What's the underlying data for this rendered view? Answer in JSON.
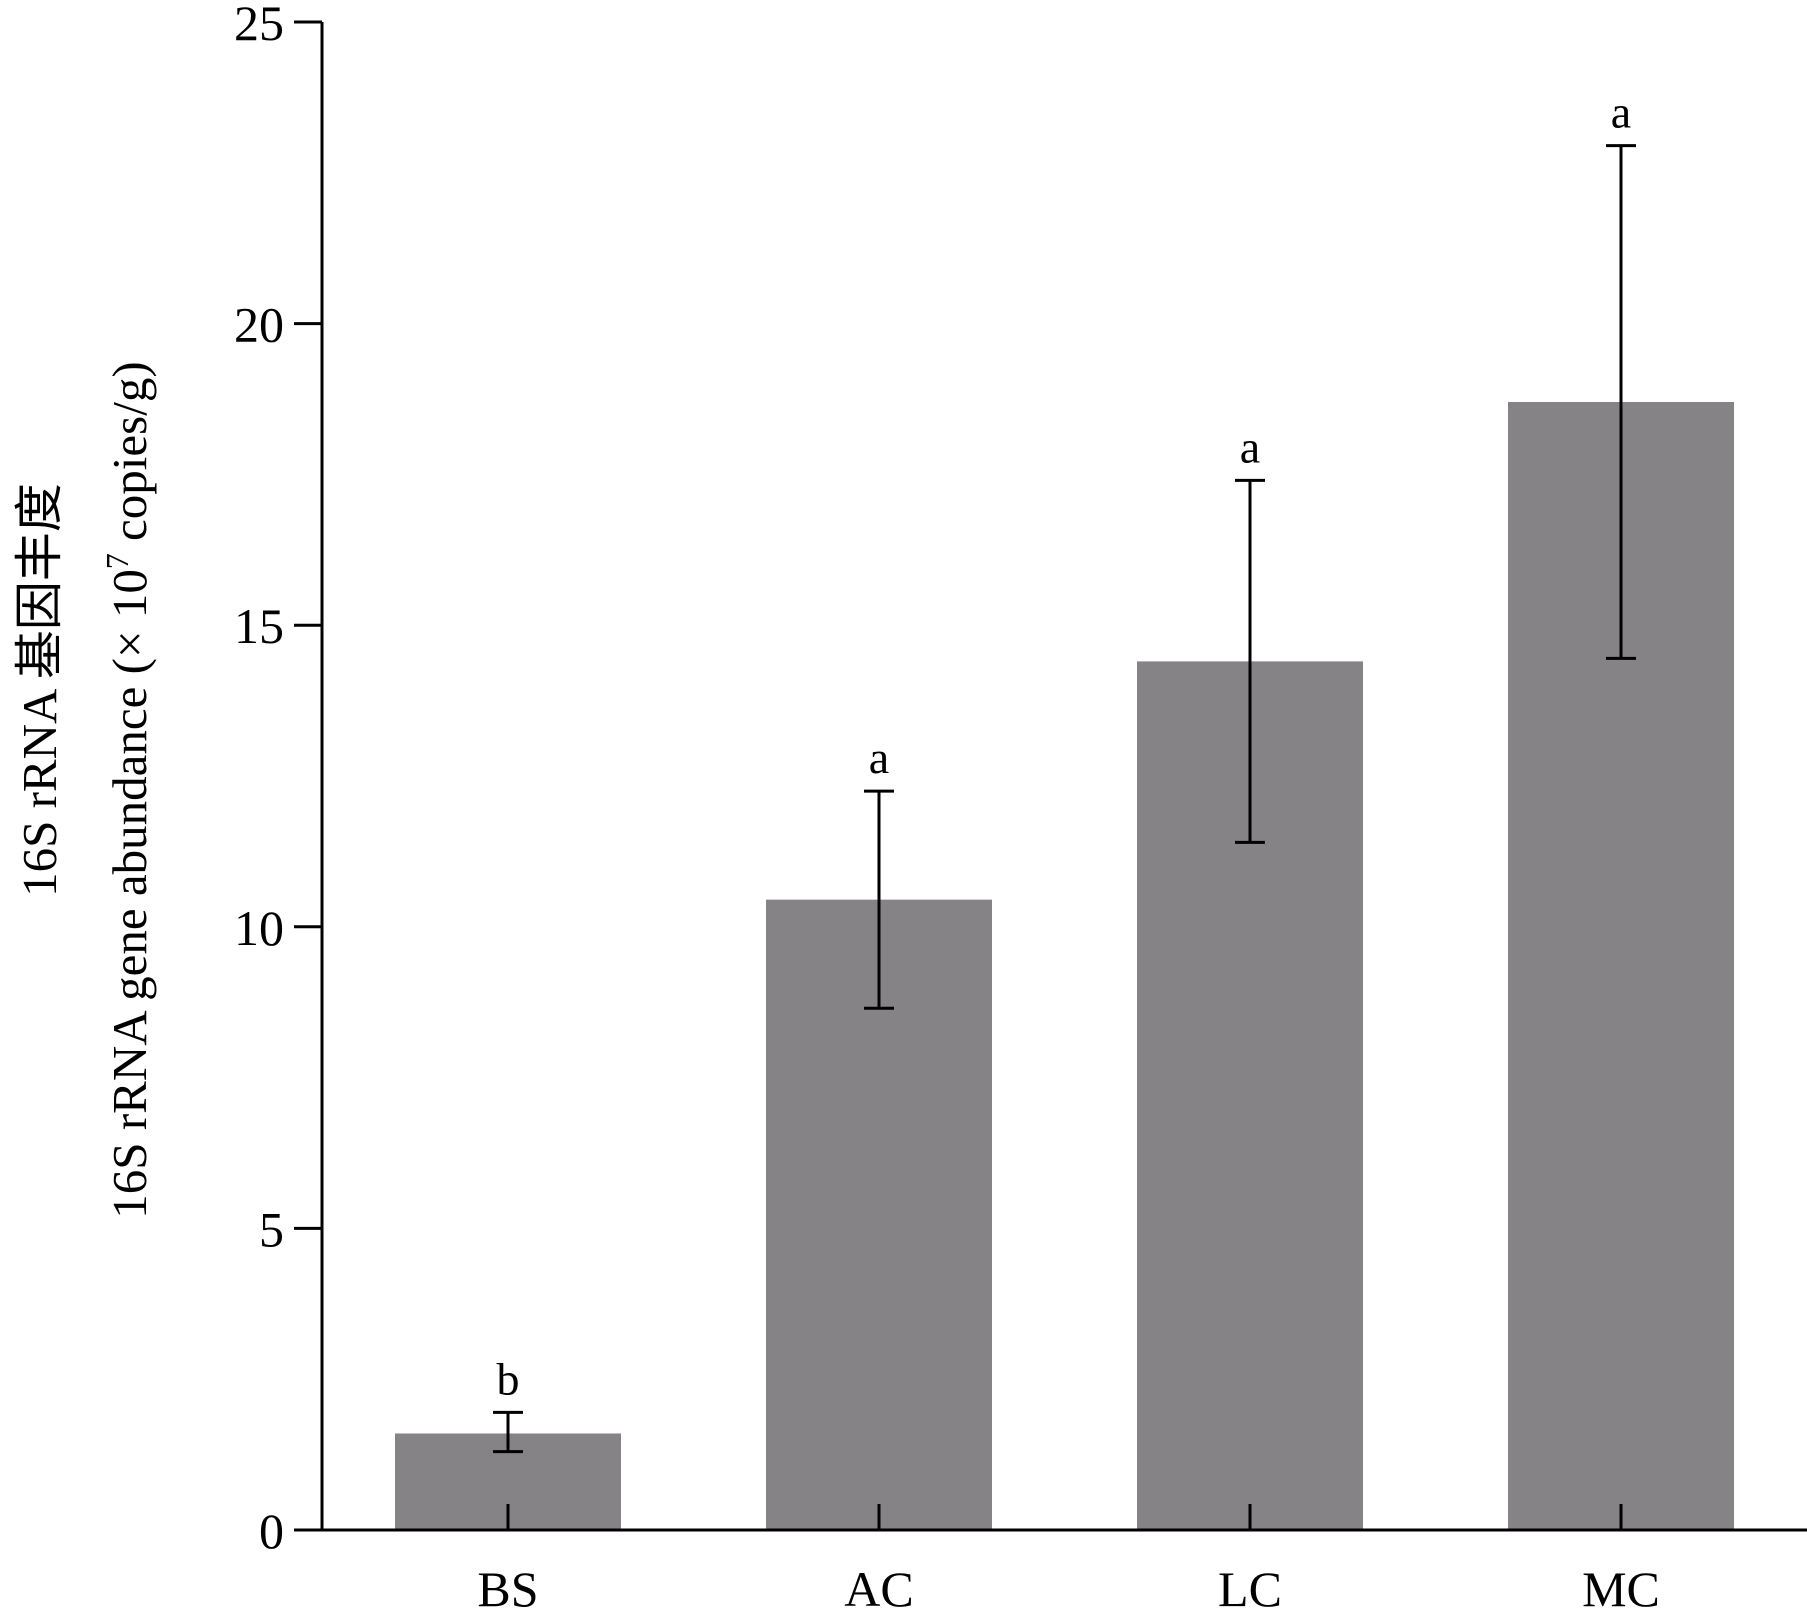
{
  "chart_data": {
    "type": "bar",
    "categories": [
      "BS",
      "AC",
      "LC",
      "MC"
    ],
    "values": [
      1.6,
      10.45,
      14.4,
      18.7
    ],
    "error_low": [
      1.3,
      8.65,
      11.4,
      14.45
    ],
    "error_high": [
      1.95,
      12.25,
      17.4,
      22.95
    ],
    "significance": [
      "b",
      "a",
      "a",
      "a"
    ],
    "ylim": [
      0,
      25
    ],
    "yticks": [
      0,
      5,
      10,
      15,
      20,
      25
    ],
    "ylabel_line1": "16S rRNA 基因丰度",
    "ylabel_line2_main": "16S rRNA gene abundance (× 10",
    "ylabel_line2_sup": "7",
    "ylabel_line2_tail": " copies/g)",
    "xlabel": "",
    "bar_color": "#858386"
  }
}
